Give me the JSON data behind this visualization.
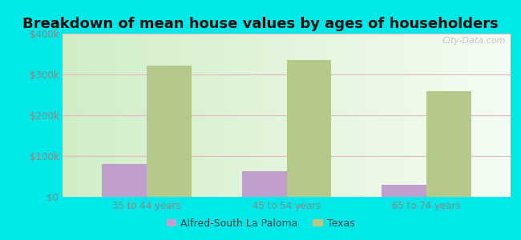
{
  "title": "Breakdown of mean house values by ages of householders",
  "categories": [
    "35 to 44 years",
    "45 to 54 years",
    "65 to 74 years"
  ],
  "series": [
    {
      "name": "Alfred-South La Paloma",
      "values": [
        80000,
        62000,
        30000
      ],
      "color": "#bf9fcc"
    },
    {
      "name": "Texas",
      "values": [
        322000,
        335000,
        258000
      ],
      "color": "#b5c98a"
    }
  ],
  "ylim": [
    0,
    400000
  ],
  "yticks": [
    0,
    100000,
    200000,
    300000,
    400000
  ],
  "ytick_labels": [
    "$0",
    "$100k",
    "$200k",
    "$300k",
    "$400k"
  ],
  "background_color": "#00e8e8",
  "title_fontsize": 13,
  "tick_fontsize": 8.5,
  "legend_fontsize": 9,
  "bar_width": 0.32,
  "watermark": "City-Data.com",
  "grid_color": "#e8b8c0",
  "ytick_color": "#888888",
  "xtick_color": "#888888"
}
